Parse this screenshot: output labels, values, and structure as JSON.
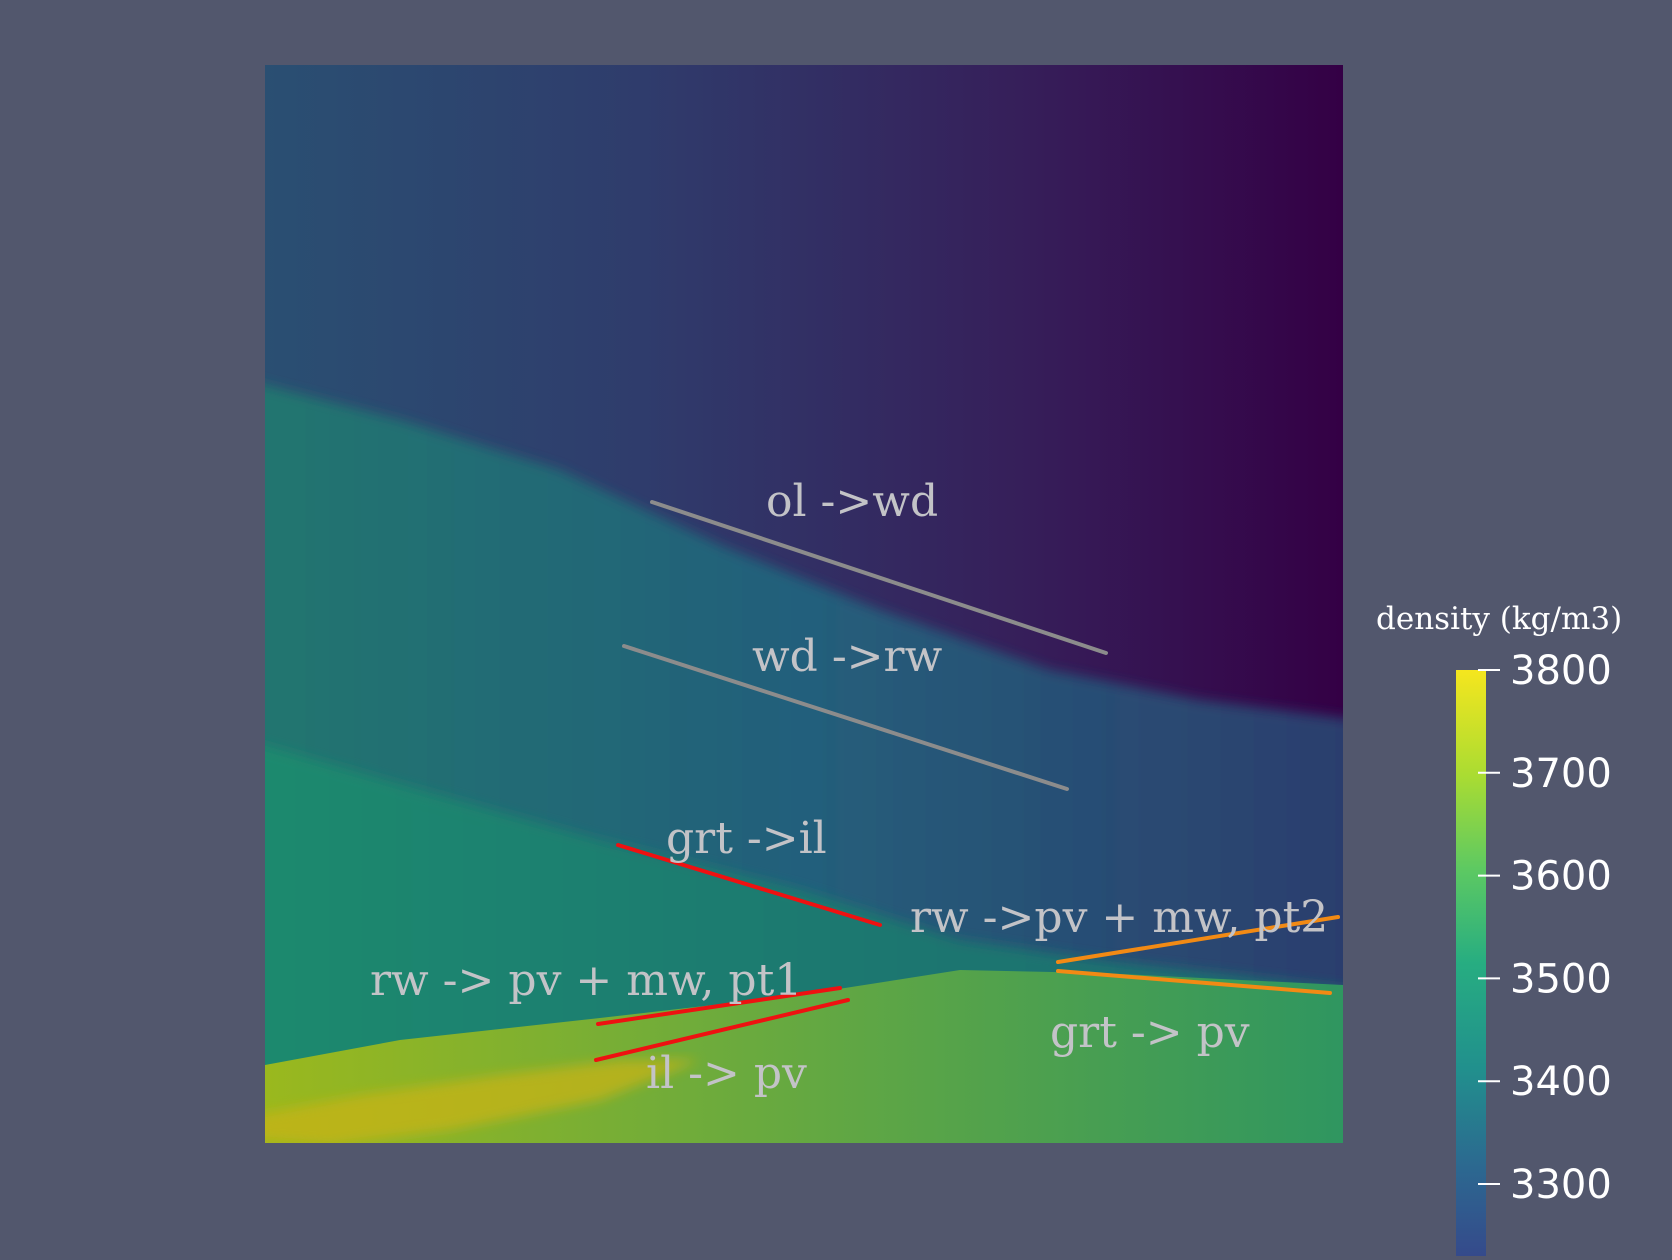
{
  "chart_data": {
    "type": "heatmap",
    "field": "density",
    "colorbar": {
      "title": "density (kg/m3)",
      "colormap": "viridis",
      "range": [
        3230,
        3800
      ],
      "ticks": [
        3800,
        3700,
        3600,
        3500,
        3400,
        3300
      ],
      "tick_labels": [
        "3800",
        "3700",
        "3600",
        "3500",
        "3400",
        "3300"
      ]
    },
    "phase_boundaries": [
      {
        "label": "ol ->wd",
        "color": "#8c8c8c"
      },
      {
        "label": "wd ->rw",
        "color": "#8c8c8c"
      },
      {
        "label": "grt ->il",
        "color": "#ee1111"
      },
      {
        "label": "rw -> pv + mw, pt1",
        "color": "#ee1111"
      },
      {
        "label": "il -> pv",
        "color": "#ee1111"
      },
      {
        "label": "rw ->pv + mw, pt2",
        "color": "#f28a14"
      },
      {
        "label": "grt -> pv",
        "color": "#f28a14"
      }
    ]
  }
}
